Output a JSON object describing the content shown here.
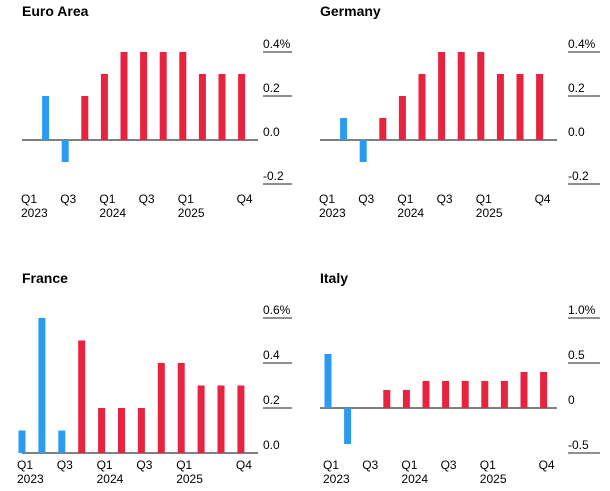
{
  "colors": {
    "actual": "#2b9bf2",
    "forecast": "#e8233f",
    "grid": "#222222",
    "baseline": "#000000"
  },
  "chart_data": [
    {
      "type": "bar",
      "title": "Euro Area",
      "categories": [
        "Q1 2023",
        "Q2 2023",
        "Q3 2023",
        "Q4 2023",
        "Q1 2024",
        "Q2 2024",
        "Q3 2024",
        "Q4 2024",
        "Q1 2025",
        "Q2 2025",
        "Q3 2025",
        "Q4 2025"
      ],
      "values": [
        0.0,
        0.2,
        -0.1,
        0.2,
        0.3,
        0.4,
        0.4,
        0.4,
        0.4,
        0.3,
        0.3,
        0.3
      ],
      "series_type": [
        "actual",
        "actual",
        "actual",
        "forecast",
        "forecast",
        "forecast",
        "forecast",
        "forecast",
        "forecast",
        "forecast",
        "forecast",
        "forecast"
      ],
      "yticks": [
        0.4,
        0.2,
        0.0,
        -0.2
      ],
      "ytick_labels": [
        "0.4%",
        "0.2",
        "0.0",
        "-0.2"
      ],
      "ylim": [
        -0.2,
        0.4
      ],
      "xtick_labels": [
        {
          "index": 0,
          "line1": "Q1",
          "line2": "2023"
        },
        {
          "index": 2,
          "line1": "Q3",
          "line2": ""
        },
        {
          "index": 4,
          "line1": "Q1",
          "line2": "2024"
        },
        {
          "index": 6,
          "line1": "Q3",
          "line2": ""
        },
        {
          "index": 8,
          "line1": "Q1",
          "line2": "2025"
        },
        {
          "index": 11,
          "line1": "Q4",
          "line2": ""
        }
      ],
      "grid": true,
      "xlabel": "",
      "ylabel": ""
    },
    {
      "type": "bar",
      "title": "Germany",
      "categories": [
        "Q1 2023",
        "Q2 2023",
        "Q3 2023",
        "Q4 2023",
        "Q1 2024",
        "Q2 2024",
        "Q3 2024",
        "Q4 2024",
        "Q1 2025",
        "Q2 2025",
        "Q3 2025",
        "Q4 2025"
      ],
      "values": [
        0.0,
        0.1,
        -0.1,
        0.1,
        0.2,
        0.3,
        0.4,
        0.4,
        0.4,
        0.3,
        0.3,
        0.3
      ],
      "series_type": [
        "actual",
        "actual",
        "actual",
        "forecast",
        "forecast",
        "forecast",
        "forecast",
        "forecast",
        "forecast",
        "forecast",
        "forecast",
        "forecast"
      ],
      "yticks": [
        0.4,
        0.2,
        0.0,
        -0.2
      ],
      "ytick_labels": [
        "0.4%",
        "0.2",
        "0.0",
        "-0.2"
      ],
      "ylim": [
        -0.2,
        0.4
      ],
      "xtick_labels": [
        {
          "index": 0,
          "line1": "Q1",
          "line2": "2023"
        },
        {
          "index": 2,
          "line1": "Q3",
          "line2": ""
        },
        {
          "index": 4,
          "line1": "Q1",
          "line2": "2024"
        },
        {
          "index": 6,
          "line1": "Q3",
          "line2": ""
        },
        {
          "index": 8,
          "line1": "Q1",
          "line2": "2025"
        },
        {
          "index": 11,
          "line1": "Q4",
          "line2": ""
        }
      ],
      "grid": true,
      "xlabel": "",
      "ylabel": ""
    },
    {
      "type": "bar",
      "title": "France",
      "categories": [
        "Q1 2023",
        "Q2 2023",
        "Q3 2023",
        "Q4 2023",
        "Q1 2024",
        "Q2 2024",
        "Q3 2024",
        "Q4 2024",
        "Q1 2025",
        "Q2 2025",
        "Q3 2025",
        "Q4 2025"
      ],
      "values": [
        0.1,
        0.6,
        0.1,
        0.5,
        0.2,
        0.2,
        0.2,
        0.4,
        0.4,
        0.3,
        0.3,
        0.3
      ],
      "series_type": [
        "actual",
        "actual",
        "actual",
        "forecast",
        "forecast",
        "forecast",
        "forecast",
        "forecast",
        "forecast",
        "forecast",
        "forecast",
        "forecast"
      ],
      "yticks": [
        0.6,
        0.4,
        0.2,
        0.0
      ],
      "ytick_labels": [
        "0.6%",
        "0.4",
        "0.2",
        "0.0"
      ],
      "ylim": [
        0.0,
        0.6
      ],
      "xtick_labels": [
        {
          "index": 0,
          "line1": "Q1",
          "line2": "2023"
        },
        {
          "index": 2,
          "line1": "Q3",
          "line2": ""
        },
        {
          "index": 4,
          "line1": "Q1",
          "line2": "2024"
        },
        {
          "index": 6,
          "line1": "Q3",
          "line2": ""
        },
        {
          "index": 8,
          "line1": "Q1",
          "line2": "2025"
        },
        {
          "index": 11,
          "line1": "Q4",
          "line2": ""
        }
      ],
      "grid": true,
      "xlabel": "",
      "ylabel": ""
    },
    {
      "type": "bar",
      "title": "Italy",
      "categories": [
        "Q1 2023",
        "Q2 2023",
        "Q3 2023",
        "Q4 2023",
        "Q1 2024",
        "Q2 2024",
        "Q3 2024",
        "Q4 2024",
        "Q1 2025",
        "Q2 2025",
        "Q3 2025",
        "Q4 2025"
      ],
      "values": [
        0.6,
        -0.4,
        0.0,
        0.2,
        0.2,
        0.3,
        0.3,
        0.3,
        0.3,
        0.3,
        0.4,
        0.4
      ],
      "series_type": [
        "actual",
        "actual",
        "actual",
        "forecast",
        "forecast",
        "forecast",
        "forecast",
        "forecast",
        "forecast",
        "forecast",
        "forecast",
        "forecast"
      ],
      "yticks": [
        1.0,
        0.5,
        0.0,
        -0.5
      ],
      "ytick_labels": [
        "1.0%",
        "0.5",
        "0",
        "-0.5"
      ],
      "ylim": [
        -0.5,
        1.0
      ],
      "xtick_labels": [
        {
          "index": 0,
          "line1": "Q1",
          "line2": "2023"
        },
        {
          "index": 2,
          "line1": "Q3",
          "line2": ""
        },
        {
          "index": 4,
          "line1": "Q1",
          "line2": "2024"
        },
        {
          "index": 6,
          "line1": "Q3",
          "line2": ""
        },
        {
          "index": 8,
          "line1": "Q1",
          "line2": "2025"
        },
        {
          "index": 11,
          "line1": "Q4",
          "line2": ""
        }
      ],
      "grid": true,
      "xlabel": "",
      "ylabel": ""
    }
  ]
}
